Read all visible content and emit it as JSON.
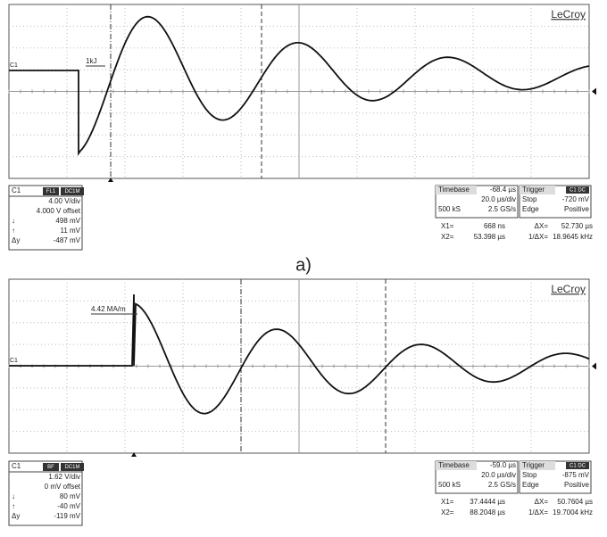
{
  "caption": "a)",
  "panels": [
    {
      "brand": "LeCroy",
      "channel_marker": "C1",
      "annotation": "1kJ",
      "channel_box": {
        "title": "C1",
        "badges": [
          "FL1",
          "DC1M"
        ],
        "rows": [
          {
            "text": "4.00 V/div"
          },
          {
            "text": "4.000 V offset"
          },
          {
            "symbol": "↓",
            "text": "498 mV"
          },
          {
            "symbol": "↑",
            "text": "11 mV"
          },
          {
            "symbol": "Δy",
            "text": "-487 mV"
          }
        ]
      },
      "timebase": {
        "label": "Timebase",
        "value": "-68.4 µs",
        "rows": [
          {
            "right": "20.0 µs/div"
          },
          {
            "left": "500 kS",
            "right": "2.5 GS/s"
          }
        ]
      },
      "trigger": {
        "label": "Trigger",
        "badge": "C1 DC",
        "rows": [
          {
            "left": "Stop",
            "right": "-720 mV"
          },
          {
            "left": "Edge",
            "right": "Positive"
          }
        ]
      },
      "cursors": [
        [
          "X1=",
          "668 ns",
          "ΔX=",
          "52.730 µs"
        ],
        [
          "X2=",
          "53.398 µs",
          "1/ΔX=",
          "18.9645 kHz"
        ]
      ]
    },
    {
      "brand": "LeCroy",
      "channel_marker": "C1",
      "annotation": "4.42 MA/m",
      "channel_box": {
        "title": "C1",
        "badges": [
          "BF",
          "DC1M"
        ],
        "rows": [
          {
            "text": "1.62 V/div"
          },
          {
            "text": "0 mV offset"
          },
          {
            "symbol": "↓",
            "text": "80 mV"
          },
          {
            "symbol": "↑",
            "text": "-40 mV"
          },
          {
            "symbol": "Δy",
            "text": "-119 mV"
          }
        ]
      },
      "timebase": {
        "label": "Timebase",
        "value": "-59.0 µs",
        "rows": [
          {
            "right": "20.0 µs/div"
          },
          {
            "left": "500 kS",
            "right": "2.5 GS/s"
          }
        ]
      },
      "trigger": {
        "label": "Trigger",
        "badge": "C1 DC",
        "rows": [
          {
            "left": "Stop",
            "right": "-875 mV"
          },
          {
            "left": "Edge",
            "right": "Positive"
          }
        ]
      },
      "cursors": [
        [
          "X1=",
          "37.4444 µs",
          "ΔX=",
          "50.7604 µs"
        ],
        [
          "X2=",
          "88.2048 µs",
          "1/ΔX=",
          "19.7004 kHz"
        ]
      ]
    }
  ]
}
